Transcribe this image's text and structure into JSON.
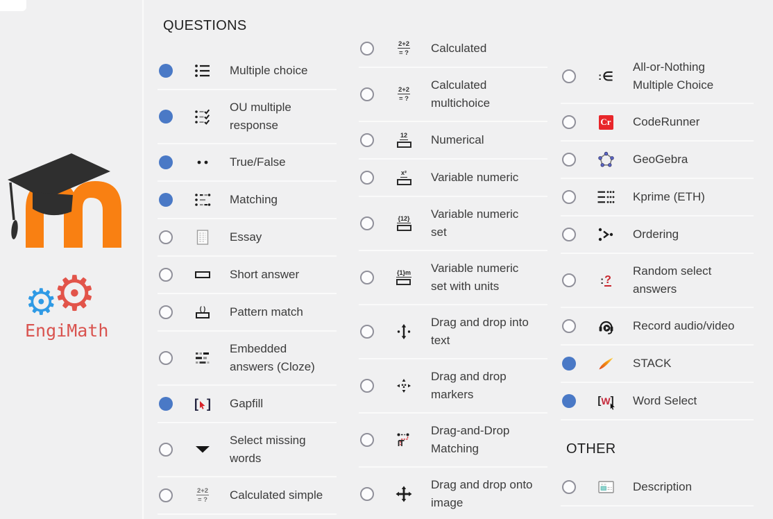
{
  "header": {
    "questions": "QUESTIONS",
    "other": "OTHER"
  },
  "logos": {
    "moodle": {
      "name": "Moodle",
      "color": "#f98012"
    },
    "engimath": {
      "label": "EngiMath",
      "text_color": "#d9534f",
      "gear_blue": "#2f9ae5",
      "gear_red": "#e2544a"
    }
  },
  "colors": {
    "background": "#f0f0f1",
    "selected_radio_blue": "#4a79c6",
    "radio_border_gray": "#90909a",
    "label_text": "#3b3b3b",
    "separator": "#fafafa",
    "coderunner_red": "#e8262a",
    "icon_dark": "#1d1d1d",
    "icon_red": "#c9252c",
    "description_teal": "#8fd3cd",
    "stack_orange": "#f08c1a"
  },
  "columns": [
    {
      "items": [
        {
          "label": "Multiple choice",
          "icon": "multiple-choice-list",
          "selected": true
        },
        {
          "label": "OU multiple response",
          "icon": "ou-multiple-response",
          "selected": true
        },
        {
          "label": "True/False",
          "icon": "true-false-dots",
          "selected": true
        },
        {
          "label": "Matching",
          "icon": "matching-list",
          "selected": true
        },
        {
          "label": "Essay",
          "icon": "essay-document",
          "selected": false
        },
        {
          "label": "Short answer",
          "icon": "short-answer-box",
          "selected": false
        },
        {
          "label": "Pattern match",
          "icon": "pattern-match",
          "selected": false
        },
        {
          "label": "Embedded answers (Cloze)",
          "icon": "cloze-blocks",
          "selected": false
        },
        {
          "label": "Gapfill",
          "icon": "gapfill-brackets",
          "selected": true
        },
        {
          "label": "Select missing words",
          "icon": "select-missing-triangle",
          "selected": false
        },
        {
          "label": "Calculated simple",
          "icon": "calculated-simple",
          "selected": false
        }
      ]
    },
    {
      "items": [
        {
          "label": "Calculated",
          "icon": "calculated",
          "selected": false
        },
        {
          "label": "Calculated multichoice",
          "icon": "calculated-multichoice",
          "selected": false
        },
        {
          "label": "Numerical",
          "icon": "numerical-box",
          "selected": false
        },
        {
          "label": "Variable numeric",
          "icon": "variable-numeric",
          "selected": false
        },
        {
          "label": "Variable numeric set",
          "icon": "variable-numeric-set",
          "selected": false
        },
        {
          "label": "Variable numeric set with units",
          "icon": "variable-numeric-set-units",
          "selected": false
        },
        {
          "label": "Drag and drop into text",
          "icon": "drag-drop-text",
          "selected": false
        },
        {
          "label": "Drag and drop markers",
          "icon": "drag-drop-markers",
          "selected": false
        },
        {
          "label": "Drag-and-Drop Matching",
          "icon": "drag-drop-matching",
          "selected": false
        },
        {
          "label": "Drag and drop onto image",
          "icon": "drag-drop-image",
          "selected": false
        }
      ]
    },
    {
      "items": [
        {
          "label": "All-or-Nothing Multiple Choice",
          "icon": "all-or-nothing",
          "selected": false
        },
        {
          "label": "CodeRunner",
          "icon": "coderunner",
          "selected": false
        },
        {
          "label": "GeoGebra",
          "icon": "geogebra",
          "selected": false
        },
        {
          "label": "Kprime (ETH)",
          "icon": "kprime-grid",
          "selected": false
        },
        {
          "label": "Ordering",
          "icon": "ordering-arrow",
          "selected": false
        },
        {
          "label": "Random select answers",
          "icon": "random-select",
          "selected": false
        },
        {
          "label": "Record audio/video",
          "icon": "record-audio-video",
          "selected": false
        },
        {
          "label": "STACK",
          "icon": "stack-flame",
          "selected": true
        },
        {
          "label": "Word Select",
          "icon": "word-select",
          "selected": true
        }
      ]
    }
  ],
  "other_items": [
    {
      "label": "Description",
      "icon": "description-card",
      "selected": false
    }
  ]
}
